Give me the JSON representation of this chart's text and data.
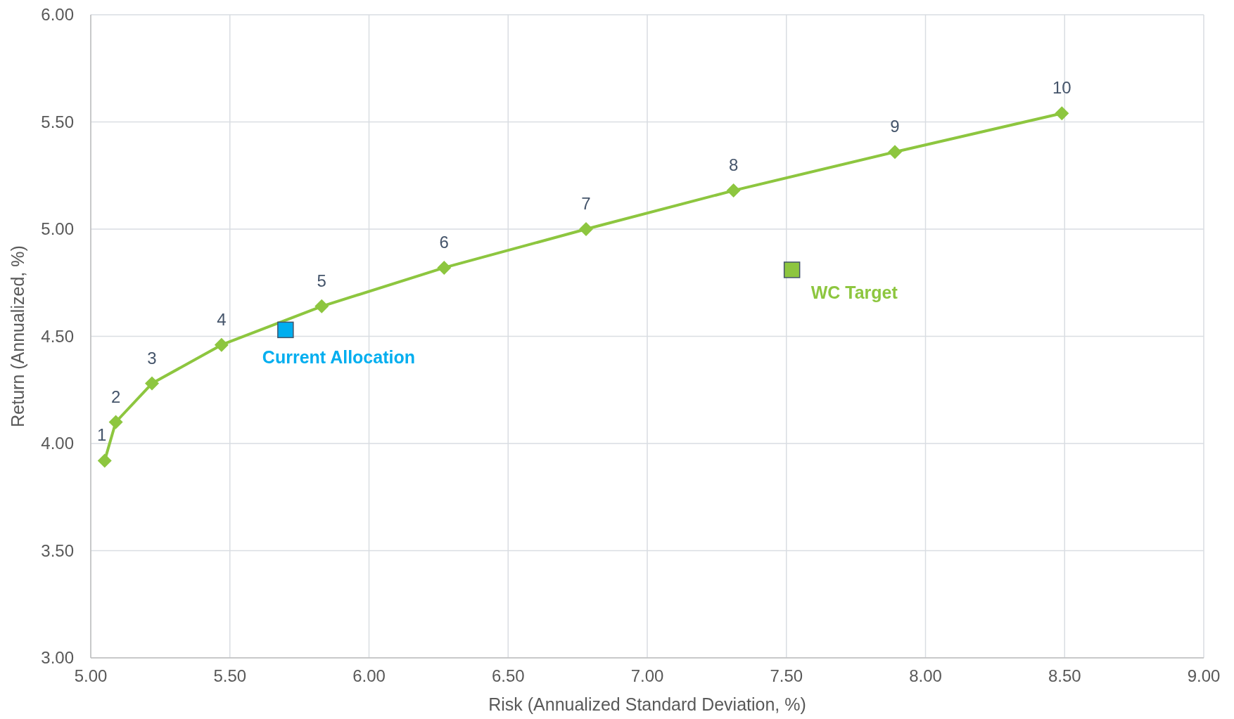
{
  "chart_data": {
    "type": "line",
    "xlabel": "Risk (Annualized Standard Deviation, %)",
    "ylabel": "Return (Annualized, %)",
    "xlim": [
      5,
      9
    ],
    "xticks": [
      {
        "value": 5,
        "label": "5.00"
      },
      {
        "value": 5.5,
        "label": "5.50"
      },
      {
        "value": 6,
        "label": "6.00"
      },
      {
        "value": 6.5,
        "label": "6.50"
      },
      {
        "value": 7,
        "label": "7.00"
      },
      {
        "value": 7.5,
        "label": "7.50"
      },
      {
        "value": 8,
        "label": "8.00"
      },
      {
        "value": 8.5,
        "label": "8.50"
      },
      {
        "value": 9,
        "label": "9.00"
      }
    ],
    "ylim": [
      3,
      6
    ],
    "yticks": [
      {
        "value": 3,
        "label": "3.00"
      },
      {
        "value": 3.5,
        "label": "3.50"
      },
      {
        "value": 4,
        "label": "4.00"
      },
      {
        "value": 4.5,
        "label": "4.50"
      },
      {
        "value": 5,
        "label": "5.00"
      },
      {
        "value": 5.5,
        "label": "5.50"
      },
      {
        "value": 6,
        "label": "6.00"
      }
    ],
    "grid": true,
    "series": [
      {
        "color": "#8dc63f",
        "marker": "diamond",
        "x": [
          5.05,
          5.09,
          5.22,
          5.47,
          5.83,
          6.27,
          6.78,
          7.31,
          7.89,
          8.49
        ],
        "values": [
          3.92,
          4.1,
          4.28,
          4.46,
          4.64,
          4.82,
          5.0,
          5.18,
          5.36,
          5.54
        ]
      },
      {
        "type": "scatter",
        "name": "Current Allocation",
        "color": "#00aeef",
        "marker": "square",
        "x": [
          5.7
        ],
        "values": [
          4.53
        ]
      },
      {
        "type": "scatter",
        "name": "WC Target",
        "color": "#8dc63f",
        "marker": "square",
        "x": [
          7.52
        ],
        "values": [
          4.81
        ]
      }
    ],
    "annotations": [
      {
        "text": "1",
        "x": 5.05,
        "y": 3.92
      },
      {
        "text": "2",
        "x": 5.09,
        "y": 4.1
      },
      {
        "text": "3",
        "x": 5.22,
        "y": 4.28
      },
      {
        "text": "4",
        "x": 5.47,
        "y": 4.46
      },
      {
        "text": "5",
        "x": 5.83,
        "y": 4.64
      },
      {
        "text": "6",
        "x": 6.27,
        "y": 4.82
      },
      {
        "text": "7",
        "x": 6.78,
        "y": 5.0
      },
      {
        "text": "8",
        "x": 7.31,
        "y": 5.18
      },
      {
        "text": "9",
        "x": 7.89,
        "y": 5.36
      },
      {
        "text": "10",
        "x": 8.49,
        "y": 5.54
      }
    ]
  }
}
